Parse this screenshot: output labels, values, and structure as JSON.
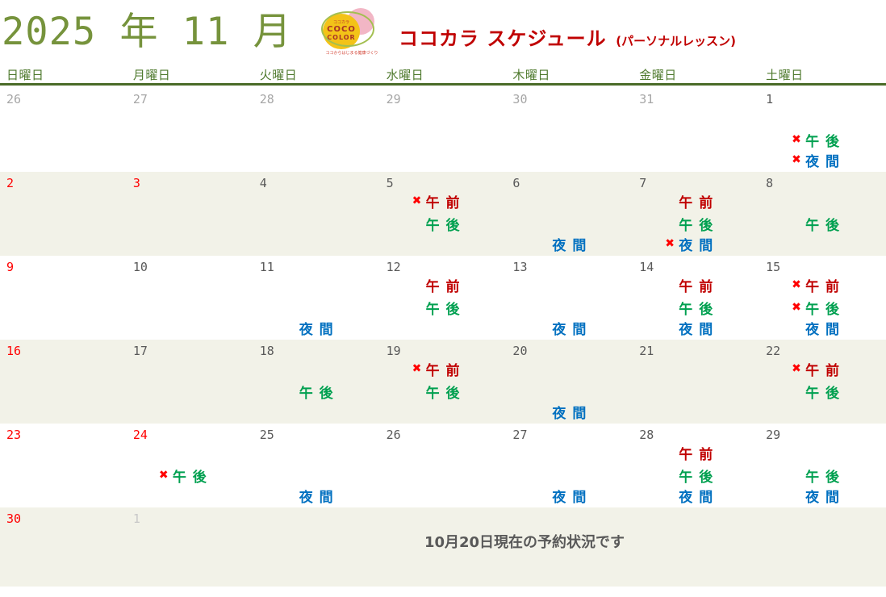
{
  "page": {
    "title_year_month": "2025 年 11 月",
    "footer_note": "10月20日現在の予約状況です"
  },
  "logo": {
    "kana": "ココカラ",
    "line1": "COCO",
    "line2": "COLOR",
    "tagline": "ココからはじまる健康づくり"
  },
  "schedule_header": {
    "title": "ココカラ スケジュール",
    "subtitle": "(パーソナルレッスン)"
  },
  "calendar": {
    "weekdays": [
      "日曜日",
      "月曜日",
      "火曜日",
      "水曜日",
      "木曜日",
      "金曜日",
      "土曜日"
    ],
    "cross_glyph": "✖",
    "slot_labels": {
      "am": "午 前",
      "pm": "午 後",
      "night": "夜 間"
    },
    "weeks": [
      {
        "days": [
          {
            "date": "26",
            "tone": "prev",
            "entries": []
          },
          {
            "date": "27",
            "tone": "prev",
            "entries": []
          },
          {
            "date": "28",
            "tone": "prev",
            "entries": []
          },
          {
            "date": "29",
            "tone": "prev",
            "entries": []
          },
          {
            "date": "30",
            "tone": "prev",
            "entries": []
          },
          {
            "date": "31",
            "tone": "prev",
            "entries": []
          },
          {
            "date": "1",
            "tone": "normal",
            "entries": [
              {
                "slot": "pm",
                "crossed": true
              },
              {
                "slot": "night",
                "crossed": true
              }
            ]
          }
        ]
      },
      {
        "days": [
          {
            "date": "2",
            "tone": "red",
            "entries": []
          },
          {
            "date": "3",
            "tone": "red",
            "entries": []
          },
          {
            "date": "4",
            "tone": "normal",
            "entries": []
          },
          {
            "date": "5",
            "tone": "normal",
            "entries": [
              {
                "slot": "am",
                "crossed": true
              },
              {
                "slot": "pm",
                "crossed": false
              }
            ]
          },
          {
            "date": "6",
            "tone": "normal",
            "entries": [
              {
                "slot": "night",
                "crossed": false
              }
            ]
          },
          {
            "date": "7",
            "tone": "normal",
            "entries": [
              {
                "slot": "am",
                "crossed": false
              },
              {
                "slot": "pm",
                "crossed": false
              },
              {
                "slot": "night",
                "crossed": true
              }
            ]
          },
          {
            "date": "8",
            "tone": "normal",
            "entries": [
              {
                "slot": "pm",
                "crossed": false
              }
            ]
          }
        ]
      },
      {
        "days": [
          {
            "date": "9",
            "tone": "red",
            "entries": []
          },
          {
            "date": "10",
            "tone": "normal",
            "entries": []
          },
          {
            "date": "11",
            "tone": "normal",
            "entries": [
              {
                "slot": "night",
                "crossed": false
              }
            ]
          },
          {
            "date": "12",
            "tone": "normal",
            "entries": [
              {
                "slot": "am",
                "crossed": false
              },
              {
                "slot": "pm",
                "crossed": false
              }
            ]
          },
          {
            "date": "13",
            "tone": "normal",
            "entries": [
              {
                "slot": "night",
                "crossed": false
              }
            ]
          },
          {
            "date": "14",
            "tone": "normal",
            "entries": [
              {
                "slot": "am",
                "crossed": false
              },
              {
                "slot": "pm",
                "crossed": false
              },
              {
                "slot": "night",
                "crossed": false
              }
            ]
          },
          {
            "date": "15",
            "tone": "normal",
            "entries": [
              {
                "slot": "am",
                "crossed": true
              },
              {
                "slot": "pm",
                "crossed": true
              },
              {
                "slot": "night",
                "crossed": false
              }
            ]
          }
        ]
      },
      {
        "days": [
          {
            "date": "16",
            "tone": "red",
            "entries": []
          },
          {
            "date": "17",
            "tone": "normal",
            "entries": []
          },
          {
            "date": "18",
            "tone": "normal",
            "entries": [
              {
                "slot": "pm",
                "crossed": false
              }
            ]
          },
          {
            "date": "19",
            "tone": "normal",
            "entries": [
              {
                "slot": "am",
                "crossed": true
              },
              {
                "slot": "pm",
                "crossed": false
              }
            ]
          },
          {
            "date": "20",
            "tone": "normal",
            "entries": [
              {
                "slot": "night",
                "crossed": false
              }
            ]
          },
          {
            "date": "21",
            "tone": "normal",
            "entries": []
          },
          {
            "date": "22",
            "tone": "normal",
            "entries": [
              {
                "slot": "am",
                "crossed": true
              },
              {
                "slot": "pm",
                "crossed": false
              }
            ]
          }
        ]
      },
      {
        "days": [
          {
            "date": "23",
            "tone": "red",
            "entries": []
          },
          {
            "date": "24",
            "tone": "red",
            "entries": [
              {
                "slot": "pm",
                "crossed": true
              }
            ]
          },
          {
            "date": "25",
            "tone": "normal",
            "entries": [
              {
                "slot": "night",
                "crossed": false
              }
            ]
          },
          {
            "date": "26",
            "tone": "normal",
            "entries": []
          },
          {
            "date": "27",
            "tone": "normal",
            "entries": [
              {
                "slot": "night",
                "crossed": false
              }
            ]
          },
          {
            "date": "28",
            "tone": "normal",
            "entries": [
              {
                "slot": "am",
                "crossed": false
              },
              {
                "slot": "pm",
                "crossed": false
              },
              {
                "slot": "night",
                "crossed": false
              }
            ]
          },
          {
            "date": "29",
            "tone": "normal",
            "entries": [
              {
                "slot": "pm",
                "crossed": false
              },
              {
                "slot": "night",
                "crossed": false
              }
            ]
          }
        ]
      },
      {
        "days": [
          {
            "date": "30",
            "tone": "red",
            "entries": []
          },
          {
            "date": "1",
            "tone": "next",
            "entries": []
          },
          {
            "date": "",
            "tone": "normal",
            "entries": []
          },
          {
            "date": "",
            "tone": "normal",
            "entries": []
          },
          {
            "date": "",
            "tone": "normal",
            "entries": []
          },
          {
            "date": "",
            "tone": "normal",
            "entries": []
          },
          {
            "date": "",
            "tone": "normal",
            "entries": []
          }
        ]
      }
    ]
  },
  "colors": {
    "title_green": "#76933c",
    "weekday_green": "#4f7a2e",
    "header_rule_green": "#4a6b28",
    "row_shade_cream": "#f2f2e8",
    "date_grey": "#595959",
    "date_red": "#ff0000",
    "prev_month_grey": "#a6a6a6",
    "next_month_grey": "#c8c8c8",
    "am_red": "#c00000",
    "pm_green": "#00a050",
    "night_blue": "#0070c0",
    "cross_red": "#ff0000",
    "brand_red": "#c00000"
  }
}
